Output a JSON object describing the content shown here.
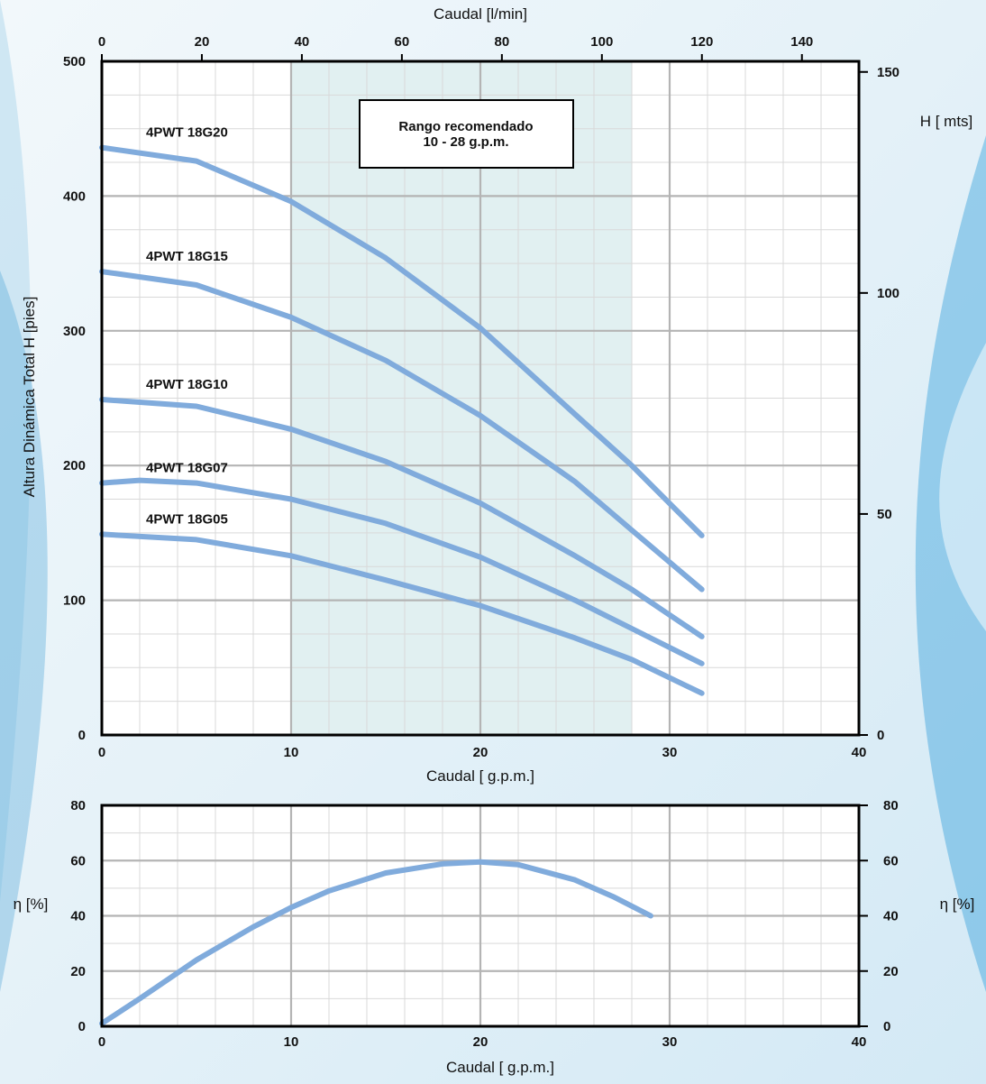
{
  "chart_data": [
    {
      "type": "line",
      "title": "",
      "xlabel": "Caudal [ g.p.m.]",
      "x2label": "Caudal [l/min]",
      "ylabel": "Altura Dinámica Total H [pies]",
      "y2label": "H [ mts]",
      "xlim": [
        0,
        40
      ],
      "ylim": [
        0,
        500
      ],
      "x2lim": [
        0,
        151.4
      ],
      "y2lim": [
        0,
        152.4
      ],
      "xticks": [
        0,
        10,
        20,
        30,
        40
      ],
      "yticks": [
        0,
        100,
        200,
        300,
        400,
        500
      ],
      "x2ticks": [
        0,
        20,
        40,
        60,
        80,
        100,
        120,
        140
      ],
      "y2ticks": [
        0,
        50,
        100,
        150
      ],
      "grid": true,
      "recommended_range": {
        "x_from": 10,
        "x_to": 28,
        "label_line1": "Rango recomendado",
        "label_line2": "10 - 28 g.p.m."
      },
      "series": [
        {
          "name": "4PWT 18G20",
          "x": [
            0,
            5,
            10,
            15,
            20,
            25,
            28,
            31.7
          ],
          "y": [
            436,
            426,
            396,
            354,
            302,
            238,
            200,
            148
          ]
        },
        {
          "name": "4PWT 18G15",
          "x": [
            0,
            5,
            10,
            15,
            20,
            25,
            28,
            31.7
          ],
          "y": [
            344,
            334,
            310,
            278,
            237,
            188,
            152,
            108
          ]
        },
        {
          "name": "4PWT 18G10",
          "x": [
            0,
            5,
            10,
            15,
            20,
            25,
            28,
            31.7
          ],
          "y": [
            249,
            244,
            227,
            203,
            172,
            133,
            108,
            73
          ]
        },
        {
          "name": "4PWT 18G07",
          "x": [
            0,
            2,
            5,
            10,
            15,
            20,
            25,
            28,
            31.7
          ],
          "y": [
            187,
            189,
            187,
            175,
            157,
            132,
            100,
            79,
            53
          ]
        },
        {
          "name": "4PWT 18G05",
          "x": [
            0,
            5,
            10,
            15,
            20,
            25,
            28,
            31.7
          ],
          "y": [
            149,
            145,
            133,
            115,
            96,
            72,
            56,
            31
          ]
        }
      ]
    },
    {
      "type": "line",
      "title": "",
      "xlabel": "Caudal [ g.p.m.]",
      "ylabel": "η [%]",
      "y2label": "η [%]",
      "xlim": [
        0,
        40
      ],
      "ylim": [
        0,
        80
      ],
      "xticks": [
        0,
        10,
        20,
        30,
        40
      ],
      "yticks": [
        0,
        20,
        40,
        60,
        80
      ],
      "grid": true,
      "series": [
        {
          "x": [
            0,
            2,
            5,
            8,
            10,
            12,
            15,
            18,
            20,
            22,
            25,
            27,
            29
          ],
          "y": [
            1,
            10,
            24,
            36,
            43,
            49,
            55.5,
            58.8,
            59.5,
            58.5,
            53,
            47,
            40
          ]
        }
      ]
    }
  ],
  "colors": {
    "curve": "#80abdc",
    "recommended_fill": "#e1f0f1",
    "major_grid": "#b4b4b4",
    "minor_grid": "#d9d9d9",
    "frame": "#000000"
  }
}
